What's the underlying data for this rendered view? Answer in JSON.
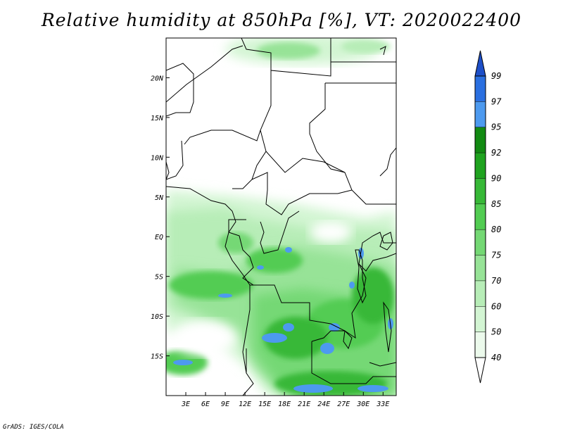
{
  "title": "Relative humidity at 850hPa [%], VT: 2020022400",
  "credit": "GrADS: IGES/COLA",
  "map": {
    "lon_range": [
      0,
      35
    ],
    "lat_range": [
      -20,
      25
    ],
    "lon_ticks": [
      "3E",
      "6E",
      "9E",
      "12E",
      "15E",
      "18E",
      "21E",
      "24E",
      "27E",
      "30E",
      "33E"
    ],
    "lat_ticks": [
      "20N",
      "15N",
      "10N",
      "5N",
      "EQ",
      "5S",
      "10S",
      "15S"
    ]
  },
  "colorbar": {
    "levels": [
      "99",
      "97",
      "95",
      "92",
      "90",
      "85",
      "80",
      "75",
      "70",
      "60",
      "50",
      "40"
    ],
    "colors": [
      "#1d4fc8",
      "#2a6fe0",
      "#4d9aef",
      "#128a12",
      "#1fa31f",
      "#37b837",
      "#52cc52",
      "#74d874",
      "#97e397",
      "#b7edb7",
      "#d3f5d3",
      "#ecfaec"
    ],
    "cap_top_color": "#1d4fc8",
    "cap_bottom_color": "#ffffff"
  }
}
